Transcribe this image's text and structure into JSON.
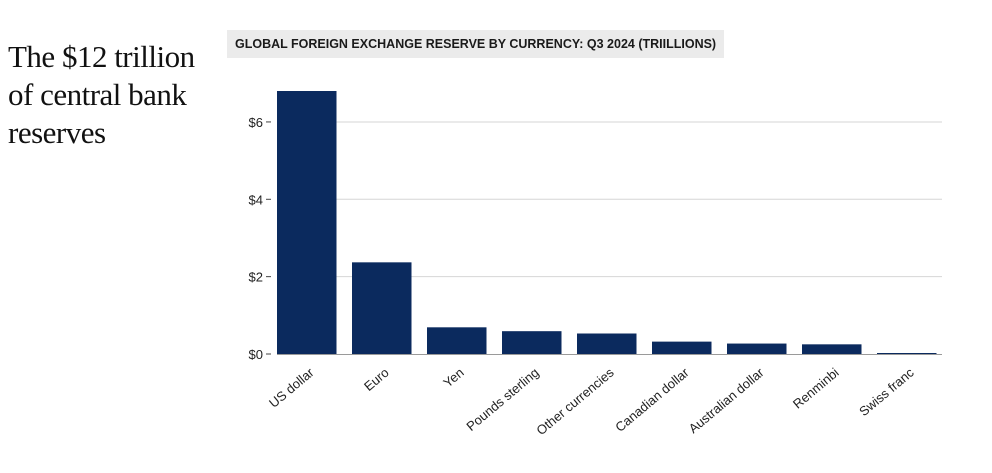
{
  "headline": "The $12 trillion of central bank reserves",
  "chart_data": {
    "type": "bar",
    "title": "GLOBAL FOREIGN EXCHANGE RESERVE BY CURRENCY: Q3 2024 (TRIILLIONS)",
    "xlabel": "",
    "ylabel": "",
    "categories": [
      "US dollar",
      "Euro",
      "Yen",
      "Pounds sterling",
      "Other currencies",
      "Canadian dollar",
      "Australian dollar",
      "Renminbi",
      "Swiss franc"
    ],
    "values": [
      6.8,
      2.37,
      0.69,
      0.59,
      0.53,
      0.32,
      0.27,
      0.25,
      0.02
    ],
    "ylim": [
      0,
      6.8
    ],
    "yticks": [
      0,
      2,
      4,
      6
    ],
    "ytick_labels": [
      "$0",
      "$2",
      "$4",
      "$6"
    ],
    "grid": true,
    "bar_color": "#0b2a5e",
    "grid_color": "#d6d6d6"
  }
}
